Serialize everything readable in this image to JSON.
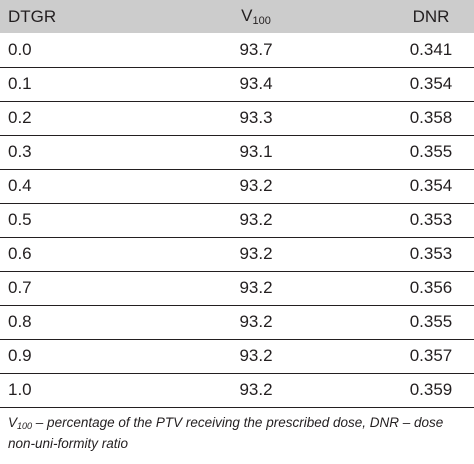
{
  "table": {
    "headers": {
      "col1": "DTGR",
      "col2_main": "V",
      "col2_sub": "100",
      "col3": "DNR"
    },
    "rows": [
      {
        "dtgr": "0.0",
        "v100": "93.7",
        "dnr": "0.341"
      },
      {
        "dtgr": "0.1",
        "v100": "93.4",
        "dnr": "0.354"
      },
      {
        "dtgr": "0.2",
        "v100": "93.3",
        "dnr": "0.358"
      },
      {
        "dtgr": "0.3",
        "v100": "93.1",
        "dnr": "0.355"
      },
      {
        "dtgr": "0.4",
        "v100": "93.2",
        "dnr": "0.354"
      },
      {
        "dtgr": "0.5",
        "v100": "93.2",
        "dnr": "0.353"
      },
      {
        "dtgr": "0.6",
        "v100": "93.2",
        "dnr": "0.353"
      },
      {
        "dtgr": "0.7",
        "v100": "93.2",
        "dnr": "0.356"
      },
      {
        "dtgr": "0.8",
        "v100": "93.2",
        "dnr": "0.355"
      },
      {
        "dtgr": "0.9",
        "v100": "93.2",
        "dnr": "0.357"
      },
      {
        "dtgr": "1.0",
        "v100": "93.2",
        "dnr": "0.359"
      }
    ]
  },
  "footnote": {
    "sym_main": "V",
    "sym_sub": "100",
    "text": " – percentage of the PTV receiving the prescribed dose, DNR – dose non-uni-formity ratio"
  },
  "colors": {
    "header_bg": "#cccccc",
    "text": "#231f20",
    "rule": "#231f20"
  }
}
